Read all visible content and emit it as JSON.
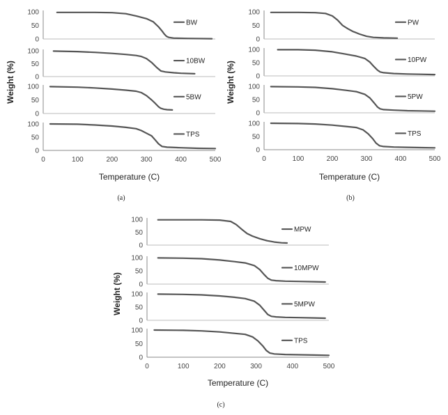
{
  "colors": {
    "curve": "#555555",
    "axis": "#888888",
    "separator": "#bbbbbb",
    "text": "#222222"
  },
  "chart_data": [
    {
      "type": "line",
      "caption": "(a)",
      "xlabel": "Temperature (C)",
      "ylabel": "Weight (%)",
      "xlim": [
        0,
        500
      ],
      "ylim": [
        0,
        100
      ],
      "x_ticks": [
        "0",
        "100",
        "200",
        "300",
        "400",
        "500"
      ],
      "y_ticks": [
        "0",
        "50",
        "100"
      ],
      "panels": [
        {
          "name": "BW",
          "legend": "BW",
          "x": [
            40,
            100,
            150,
            200,
            240,
            270,
            300,
            320,
            335,
            345,
            352,
            358,
            365,
            380,
            420,
            490
          ],
          "y": [
            98,
            98,
            98,
            97,
            93,
            85,
            75,
            63,
            45,
            30,
            18,
            10,
            6,
            3,
            2,
            1
          ]
        },
        {
          "name": "10BW",
          "legend": "10BW",
          "x": [
            30,
            100,
            150,
            200,
            240,
            270,
            285,
            300,
            315,
            330,
            342,
            355,
            380,
            400,
            440
          ],
          "y": [
            99,
            97,
            94,
            90,
            86,
            82,
            78,
            70,
            55,
            35,
            22,
            18,
            15,
            13,
            11
          ]
        },
        {
          "name": "5BW",
          "legend": "5BW",
          "x": [
            20,
            100,
            150,
            200,
            240,
            270,
            285,
            300,
            315,
            325,
            335,
            342,
            350,
            360,
            375
          ],
          "y": [
            99,
            97,
            94,
            90,
            86,
            82,
            77,
            66,
            50,
            38,
            25,
            19,
            16,
            14,
            13
          ]
        },
        {
          "name": "TPS",
          "legend": "TPS",
          "x": [
            20,
            100,
            150,
            200,
            240,
            270,
            285,
            300,
            315,
            325,
            335,
            345,
            360,
            400,
            450,
            500
          ],
          "y": [
            100,
            99,
            96,
            92,
            87,
            82,
            75,
            65,
            55,
            40,
            25,
            15,
            12,
            10,
            8,
            7
          ]
        }
      ]
    },
    {
      "type": "line",
      "caption": "(b)",
      "xlabel": "Temperature (C)",
      "ylabel": "Weight (%)",
      "xlim": [
        0,
        500
      ],
      "ylim": [
        0,
        100
      ],
      "x_ticks": [
        "0",
        "100",
        "200",
        "300",
        "400",
        "500"
      ],
      "y_ticks": [
        "0",
        "50",
        "100"
      ],
      "panels": [
        {
          "name": "PW",
          "legend": "PW",
          "x": [
            20,
            100,
            150,
            180,
            200,
            215,
            230,
            245,
            260,
            280,
            300,
            320,
            350,
            390
          ],
          "y": [
            98,
            98,
            97,
            94,
            85,
            70,
            50,
            38,
            28,
            18,
            10,
            6,
            4,
            3
          ]
        },
        {
          "name": "10PW",
          "legend": "10PW",
          "x": [
            40,
            100,
            150,
            200,
            240,
            270,
            295,
            310,
            322,
            332,
            340,
            350,
            380,
            420,
            460,
            500
          ],
          "y": [
            99,
            99,
            97,
            91,
            82,
            75,
            66,
            52,
            35,
            22,
            15,
            12,
            9,
            7,
            6,
            5
          ]
        },
        {
          "name": "5PW",
          "legend": "5PW",
          "x": [
            20,
            100,
            150,
            200,
            240,
            270,
            295,
            310,
            322,
            332,
            340,
            350,
            380,
            420,
            460,
            500
          ],
          "y": [
            99,
            98,
            96,
            91,
            85,
            80,
            70,
            56,
            38,
            22,
            15,
            12,
            10,
            8,
            7,
            6
          ]
        },
        {
          "name": "TPS",
          "legend": "TPS",
          "x": [
            20,
            100,
            150,
            200,
            240,
            270,
            290,
            305,
            318,
            328,
            338,
            350,
            380,
            420,
            460,
            500
          ],
          "y": [
            100,
            99,
            97,
            93,
            88,
            84,
            75,
            60,
            42,
            25,
            15,
            12,
            10,
            9,
            8,
            7
          ]
        }
      ]
    },
    {
      "type": "line",
      "caption": "(c)",
      "xlabel": "Temperature (C)",
      "ylabel": "Weight (%)",
      "xlim": [
        0,
        500
      ],
      "ylim": [
        0,
        100
      ],
      "x_ticks": [
        "0",
        "100",
        "200",
        "300",
        "400",
        "500"
      ],
      "y_ticks": [
        "0",
        "50",
        "100"
      ],
      "panels": [
        {
          "name": "MPW",
          "legend": "MPW",
          "x": [
            30,
            100,
            150,
            200,
            230,
            245,
            260,
            275,
            290,
            310,
            330,
            350,
            370,
            385
          ],
          "y": [
            98,
            98,
            98,
            97,
            92,
            80,
            62,
            45,
            35,
            25,
            17,
            12,
            9,
            8
          ]
        },
        {
          "name": "10MPW",
          "legend": "10MPW",
          "x": [
            30,
            100,
            150,
            200,
            240,
            270,
            295,
            310,
            322,
            332,
            342,
            355,
            380,
            420,
            460,
            490
          ],
          "y": [
            99,
            98,
            96,
            91,
            85,
            80,
            70,
            55,
            36,
            22,
            15,
            13,
            11,
            10,
            9,
            8
          ]
        },
        {
          "name": "5MPW",
          "legend": "5MPW",
          "x": [
            30,
            100,
            150,
            200,
            240,
            270,
            295,
            310,
            322,
            332,
            342,
            355,
            380,
            420,
            460,
            490
          ],
          "y": [
            99,
            98,
            96,
            92,
            87,
            82,
            72,
            57,
            38,
            22,
            15,
            13,
            11,
            10,
            9,
            8
          ]
        },
        {
          "name": "TPS",
          "legend": "TPS",
          "x": [
            20,
            100,
            150,
            200,
            240,
            270,
            290,
            305,
            318,
            328,
            338,
            350,
            380,
            420,
            460,
            500
          ],
          "y": [
            100,
            99,
            97,
            93,
            88,
            84,
            75,
            60,
            42,
            25,
            15,
            12,
            10,
            9,
            8,
            7
          ]
        }
      ]
    }
  ]
}
